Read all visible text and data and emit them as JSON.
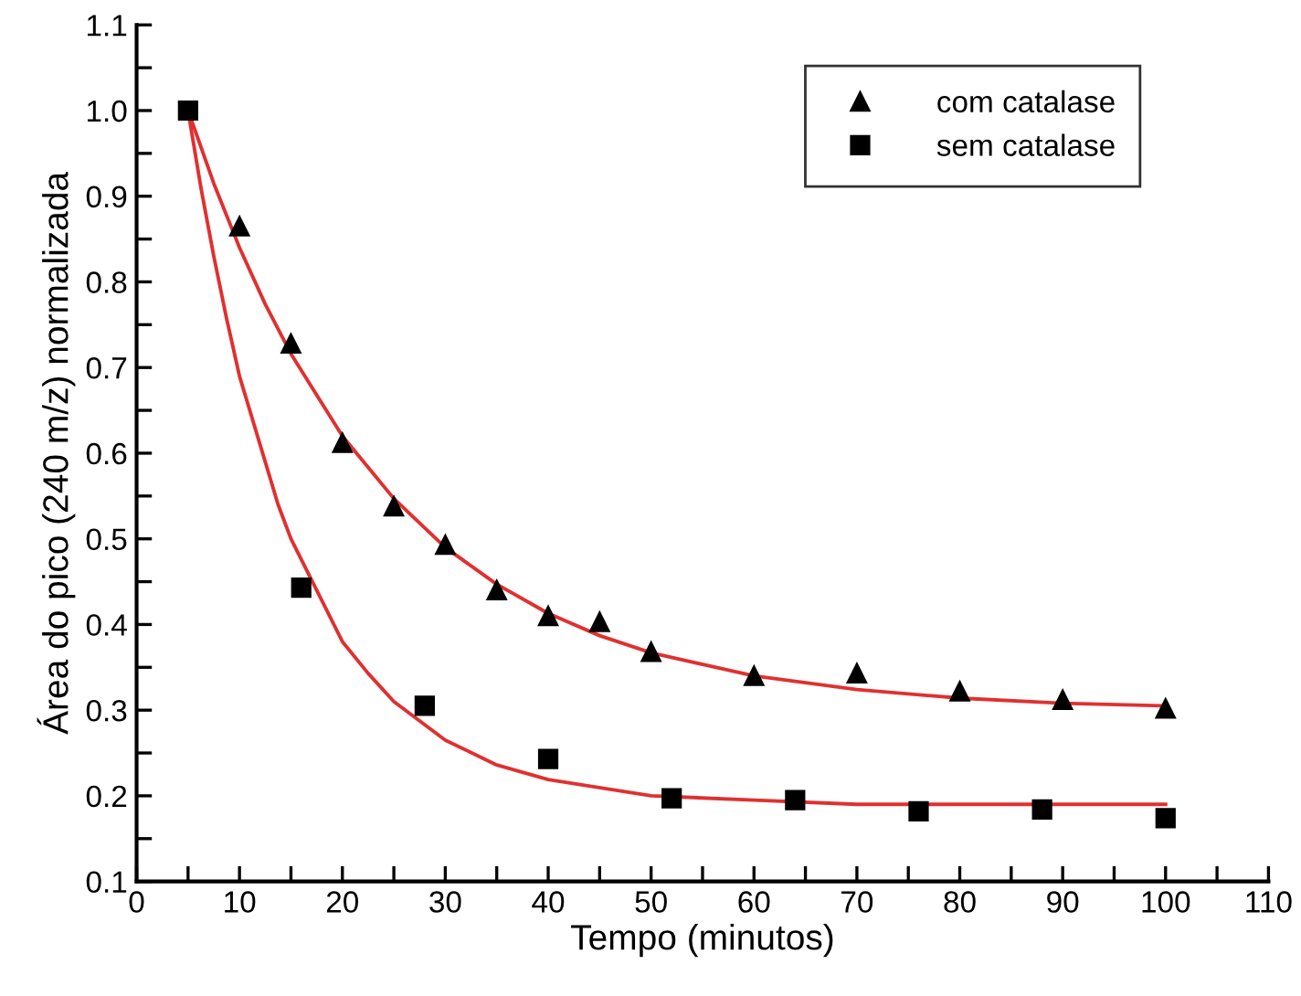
{
  "chart_data": {
    "type": "scatter",
    "xlabel": "Tempo (minutos)",
    "ylabel": "Área do pico (240 m/z) normalizada",
    "xlim": [
      0,
      110
    ],
    "ylim": [
      0.1,
      1.1
    ],
    "xticks": [
      0,
      {
        "value": 5,
        "label": null
      },
      10,
      {
        "value": 15,
        "label": null
      },
      20,
      {
        "value": 25,
        "label": null
      },
      30,
      {
        "value": 35,
        "label": null
      },
      40,
      {
        "value": 45,
        "label": null
      },
      50,
      {
        "value": 55,
        "label": null
      },
      60,
      {
        "value": 65,
        "label": null
      },
      70,
      {
        "value": 75,
        "label": null
      },
      80,
      {
        "value": 85,
        "label": null
      },
      90,
      {
        "value": 95,
        "label": null
      },
      100,
      {
        "value": 105,
        "label": null
      },
      110
    ],
    "yticks": [
      0.1,
      {
        "value": 0.15,
        "label": null
      },
      0.2,
      {
        "value": 0.25,
        "label": null
      },
      0.3,
      {
        "value": 0.35,
        "label": null
      },
      0.4,
      {
        "value": 0.45,
        "label": null
      },
      0.5,
      {
        "value": 0.55,
        "label": null
      },
      0.6,
      {
        "value": 0.65,
        "label": null
      },
      0.7,
      {
        "value": 0.75,
        "label": null
      },
      0.8,
      {
        "value": 0.85,
        "label": null
      },
      0.9,
      {
        "value": 0.95,
        "label": null
      },
      {
        "value": 1.0,
        "label": "1.0"
      },
      {
        "value": 1.05,
        "label": null
      },
      1.1
    ],
    "grid": false,
    "legend": "top right",
    "series": [
      {
        "type": "line",
        "color": "#e03030",
        "marker": "none",
        "x": [
          5,
          7.5,
          10,
          12.5,
          15,
          20,
          25,
          30,
          35,
          40,
          45,
          50,
          60,
          70,
          80,
          90,
          100
        ],
        "values": [
          1.0,
          0.915,
          0.84,
          0.774,
          0.716,
          0.62,
          0.547,
          0.49,
          0.447,
          0.413,
          0.387,
          0.367,
          0.34,
          0.324,
          0.314,
          0.308,
          0.305
        ]
      },
      {
        "type": "line",
        "color": "#e03030",
        "marker": "none",
        "x": [
          5,
          6.25,
          7.5,
          8.75,
          10,
          11.25,
          12.5,
          13.75,
          15,
          17.5,
          20,
          22.5,
          25,
          30,
          35,
          40,
          50,
          60,
          70,
          100
        ],
        "values": [
          1.0,
          0.91,
          0.83,
          0.757,
          0.69,
          0.64,
          0.59,
          0.54,
          0.5,
          0.44,
          0.38,
          0.343,
          0.31,
          0.265,
          0.236,
          0.219,
          0.2,
          0.195,
          0.19,
          0.19
        ]
      },
      {
        "name": "com catalase",
        "color": "#000000",
        "marker": "triangle",
        "x": [
          10,
          15,
          20,
          25,
          30,
          35,
          40,
          45,
          50,
          60,
          70,
          80,
          90,
          100
        ],
        "values": [
          0.865,
          0.728,
          0.612,
          0.538,
          0.493,
          0.44,
          0.41,
          0.403,
          0.368,
          0.34,
          0.343,
          0.322,
          0.312,
          0.302
        ]
      },
      {
        "name": "sem catalase",
        "color": "#000000",
        "marker": "square",
        "x": [
          5,
          16,
          28,
          40,
          52,
          64,
          76,
          88,
          100
        ],
        "values": [
          1.0,
          0.443,
          0.305,
          0.243,
          0.197,
          0.195,
          0.182,
          0.184,
          0.174
        ]
      }
    ]
  }
}
